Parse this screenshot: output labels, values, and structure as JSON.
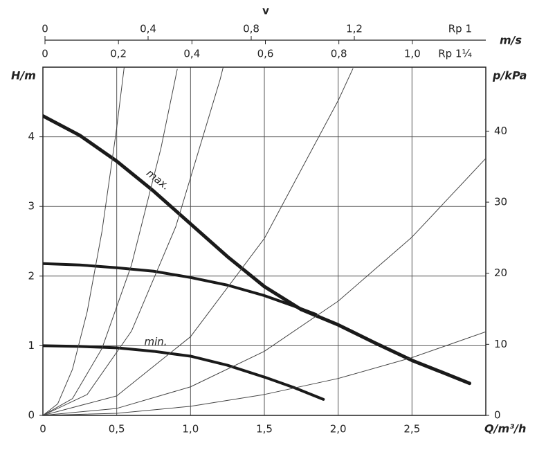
{
  "chart_data": {
    "type": "line",
    "top_title": "v",
    "top_unit": "m/s",
    "top_axes": [
      {
        "label": "Rp 1",
        "xlim": [
          0,
          1.71
        ],
        "xticks": [
          0,
          {
            "value": 0.4,
            "label": "0,4"
          },
          {
            "value": 0.8,
            "label": "0,8"
          },
          {
            "value": 1.2,
            "label": "1,2"
          }
        ]
      },
      {
        "label": "Rp 1¼",
        "xlim": [
          0,
          1.2
        ],
        "xticks": [
          0,
          {
            "value": 0.2,
            "label": "0,2"
          },
          {
            "value": 0.4,
            "label": "0,4"
          },
          {
            "value": 0.6,
            "label": "0,6"
          },
          {
            "value": 0.8,
            "label": "0,8"
          },
          {
            "value": 1.0,
            "label": "1,0"
          }
        ]
      }
    ],
    "xlabel": "Q/m³/h",
    "ylabel": "H/m",
    "y2label": "p/kPa",
    "xlim": [
      0,
      3.0
    ],
    "xticks": [
      0,
      {
        "value": 0.5,
        "label": "0,5"
      },
      {
        "value": 1.0,
        "label": "1,0"
      },
      {
        "value": 1.5,
        "label": "1,5"
      },
      {
        "value": 2.0,
        "label": "2,0"
      },
      {
        "value": 2.5,
        "label": "2,5"
      }
    ],
    "ylim": [
      0,
      5
    ],
    "yticks": [
      0,
      1,
      2,
      3,
      4
    ],
    "y2lim": [
      0,
      49
    ],
    "y2ticks": [
      0,
      10,
      20,
      30,
      40
    ],
    "grid": true,
    "annotations": [
      "max.",
      "min."
    ],
    "series": [
      {
        "color": "#1a1a1a",
        "linewidth": 5,
        "x": [
          0,
          0.25,
          0.5,
          0.75,
          1.0,
          1.25,
          1.5,
          1.75,
          2.0,
          2.25,
          2.5,
          2.75,
          2.89
        ],
        "values": [
          4.3,
          4.02,
          3.65,
          3.22,
          2.75,
          2.28,
          1.85,
          1.52,
          1.3,
          1.04,
          0.79,
          0.58,
          0.46
        ]
      },
      {
        "color": "#1a1a1a",
        "linewidth": 4,
        "x": [
          0,
          0.25,
          0.5,
          0.75,
          1.0,
          1.25,
          1.5,
          1.7,
          1.85
        ],
        "values": [
          2.18,
          2.16,
          2.12,
          2.07,
          1.98,
          1.87,
          1.72,
          1.57,
          1.45
        ]
      },
      {
        "color": "#1a1a1a",
        "linewidth": 4,
        "x": [
          0,
          0.25,
          0.5,
          0.75,
          1.0,
          1.25,
          1.5,
          1.7,
          1.9
        ],
        "values": [
          1.0,
          0.99,
          0.97,
          0.92,
          0.85,
          0.72,
          0.55,
          0.4,
          0.23
        ]
      },
      {
        "color": "#444444",
        "linewidth": 1,
        "x": [
          0,
          0.1,
          0.2,
          0.3,
          0.4,
          0.5,
          0.55
        ],
        "values": [
          0,
          0.165,
          0.66,
          1.49,
          2.64,
          4.13,
          4.99
        ]
      },
      {
        "color": "#444444",
        "linewidth": 1,
        "x": [
          0,
          0.2,
          0.4,
          0.6,
          0.8,
          0.91
        ],
        "values": [
          0,
          0.24,
          0.96,
          2.16,
          3.84,
          4.97
        ]
      },
      {
        "color": "#444444",
        "linewidth": 1,
        "x": [
          0,
          0.3,
          0.6,
          0.9,
          1.2,
          1.22
        ],
        "values": [
          0,
          0.3,
          1.21,
          2.71,
          4.82,
          4.99
        ]
      },
      {
        "color": "#444444",
        "linewidth": 1,
        "x": [
          0,
          0.5,
          1.0,
          1.5,
          2.0,
          2.1
        ],
        "values": [
          0,
          0.28,
          1.13,
          2.54,
          4.52,
          4.98
        ]
      },
      {
        "color": "#444444",
        "linewidth": 1,
        "x": [
          0,
          0.5,
          1.0,
          1.5,
          2.0,
          2.5,
          3.0
        ],
        "values": [
          0,
          0.1,
          0.41,
          0.92,
          1.64,
          2.56,
          3.69
        ]
      },
      {
        "color": "#444444",
        "linewidth": 1,
        "x": [
          0,
          0.5,
          1.0,
          1.5,
          2.0,
          2.5,
          3.0
        ],
        "values": [
          0,
          0.03,
          0.13,
          0.3,
          0.53,
          0.83,
          1.2
        ]
      }
    ]
  }
}
